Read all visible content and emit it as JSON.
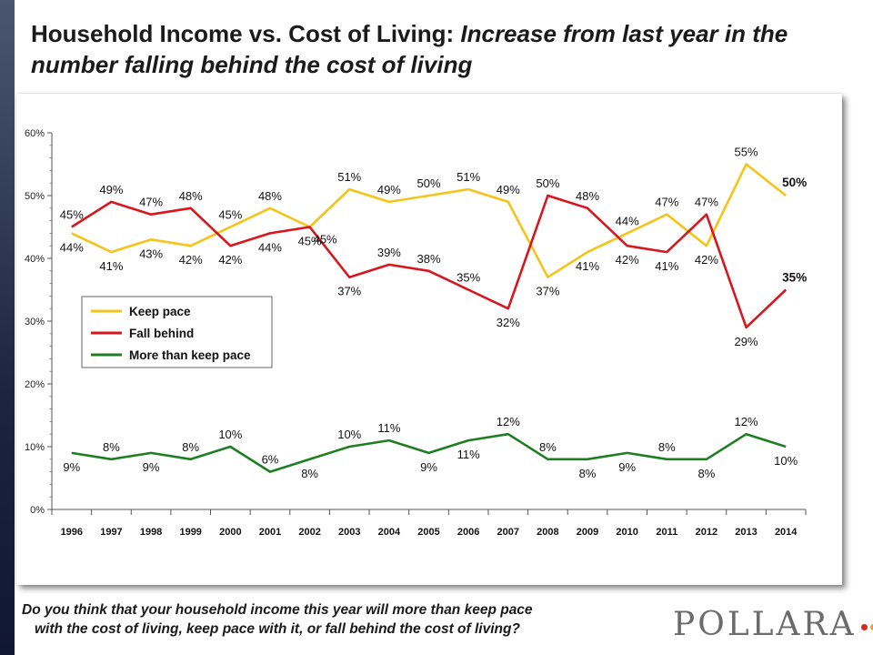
{
  "title": {
    "main": "Household Income vs. Cost of Living: ",
    "italic": "Increase from last year in the number falling behind the cost of living"
  },
  "question": {
    "line1": "Do you think that your household income this year will more than keep pace",
    "line2": "with the cost of living, keep pace with it, or fall behind the cost of living?"
  },
  "logo": {
    "text": "POLLARA",
    "dot_colors": [
      "#d52b1e",
      "#e9a21b",
      "#2a7d2e",
      "#8a8a8a"
    ]
  },
  "chart_data": {
    "type": "line",
    "x": [
      "1996",
      "1997",
      "1998",
      "1999",
      "2000",
      "2001",
      "2002",
      "2003",
      "2004",
      "2005",
      "2006",
      "2007",
      "2008",
      "2009",
      "2010",
      "2011",
      "2012",
      "2013",
      "2014"
    ],
    "y_ticks": [
      "0%",
      "10%",
      "20%",
      "30%",
      "40%",
      "50%",
      "60%"
    ],
    "ylim": [
      0,
      60
    ],
    "grid": false,
    "legend_placement": "center-left",
    "series": [
      {
        "name": "Keep pace",
        "color": "#f5c418",
        "values": [
          44,
          41,
          43,
          42,
          45,
          48,
          45,
          51,
          49,
          50,
          51,
          49,
          37,
          41,
          44,
          47,
          42,
          55,
          50
        ],
        "labels": [
          "44%",
          "41%",
          "43%",
          "42%",
          "45%",
          "48%",
          "45%",
          "51%",
          "49%",
          "50%",
          "51%",
          "49%",
          "37%",
          "41%",
          "44%",
          "47%",
          "42%",
          "55%",
          "50%"
        ],
        "label_pos": [
          "below",
          "below",
          "below",
          "below",
          "above",
          "above",
          "below",
          "above",
          "above",
          "above",
          "above",
          "above",
          "below",
          "below",
          "above",
          "above",
          "below",
          "above",
          "right"
        ]
      },
      {
        "name": "Fall behind",
        "color": "#d8161e",
        "values": [
          45,
          49,
          47,
          48,
          42,
          44,
          45,
          37,
          39,
          38,
          35,
          32,
          50,
          48,
          42,
          41,
          47,
          29,
          35
        ],
        "labels": [
          "45%",
          "49%",
          "47%",
          "48%",
          "42%",
          "44%",
          "45%",
          "37%",
          "39%",
          "38%",
          "35%",
          "32%",
          "50%",
          "48%",
          "42%",
          "41%",
          "47%",
          "29%",
          "35%"
        ],
        "label_pos": [
          "above",
          "above",
          "above",
          "above",
          "below",
          "below",
          "below-right",
          "below",
          "above",
          "above",
          "above",
          "below",
          "above",
          "above",
          "below",
          "below",
          "above",
          "below",
          "above"
        ]
      },
      {
        "name": "More than keep pace",
        "color": "#1d7f22",
        "values": [
          9,
          8,
          9,
          8,
          10,
          6,
          8,
          10,
          11,
          9,
          11,
          12,
          8,
          8,
          9,
          8,
          8,
          12,
          10
        ],
        "labels": [
          "9%",
          "8%",
          "9%",
          "8%",
          "10%",
          "6%",
          "8%",
          "10%",
          "11%",
          "9%",
          "11%",
          "12%",
          "8%",
          "8%",
          "9%",
          "8%",
          "8%",
          "12%",
          "10%"
        ],
        "label_pos": [
          "below",
          "above",
          "below",
          "above",
          "above",
          "above",
          "below",
          "above",
          "above",
          "below",
          "below",
          "above",
          "above",
          "below",
          "below",
          "above",
          "below",
          "above",
          "below"
        ]
      }
    ]
  }
}
